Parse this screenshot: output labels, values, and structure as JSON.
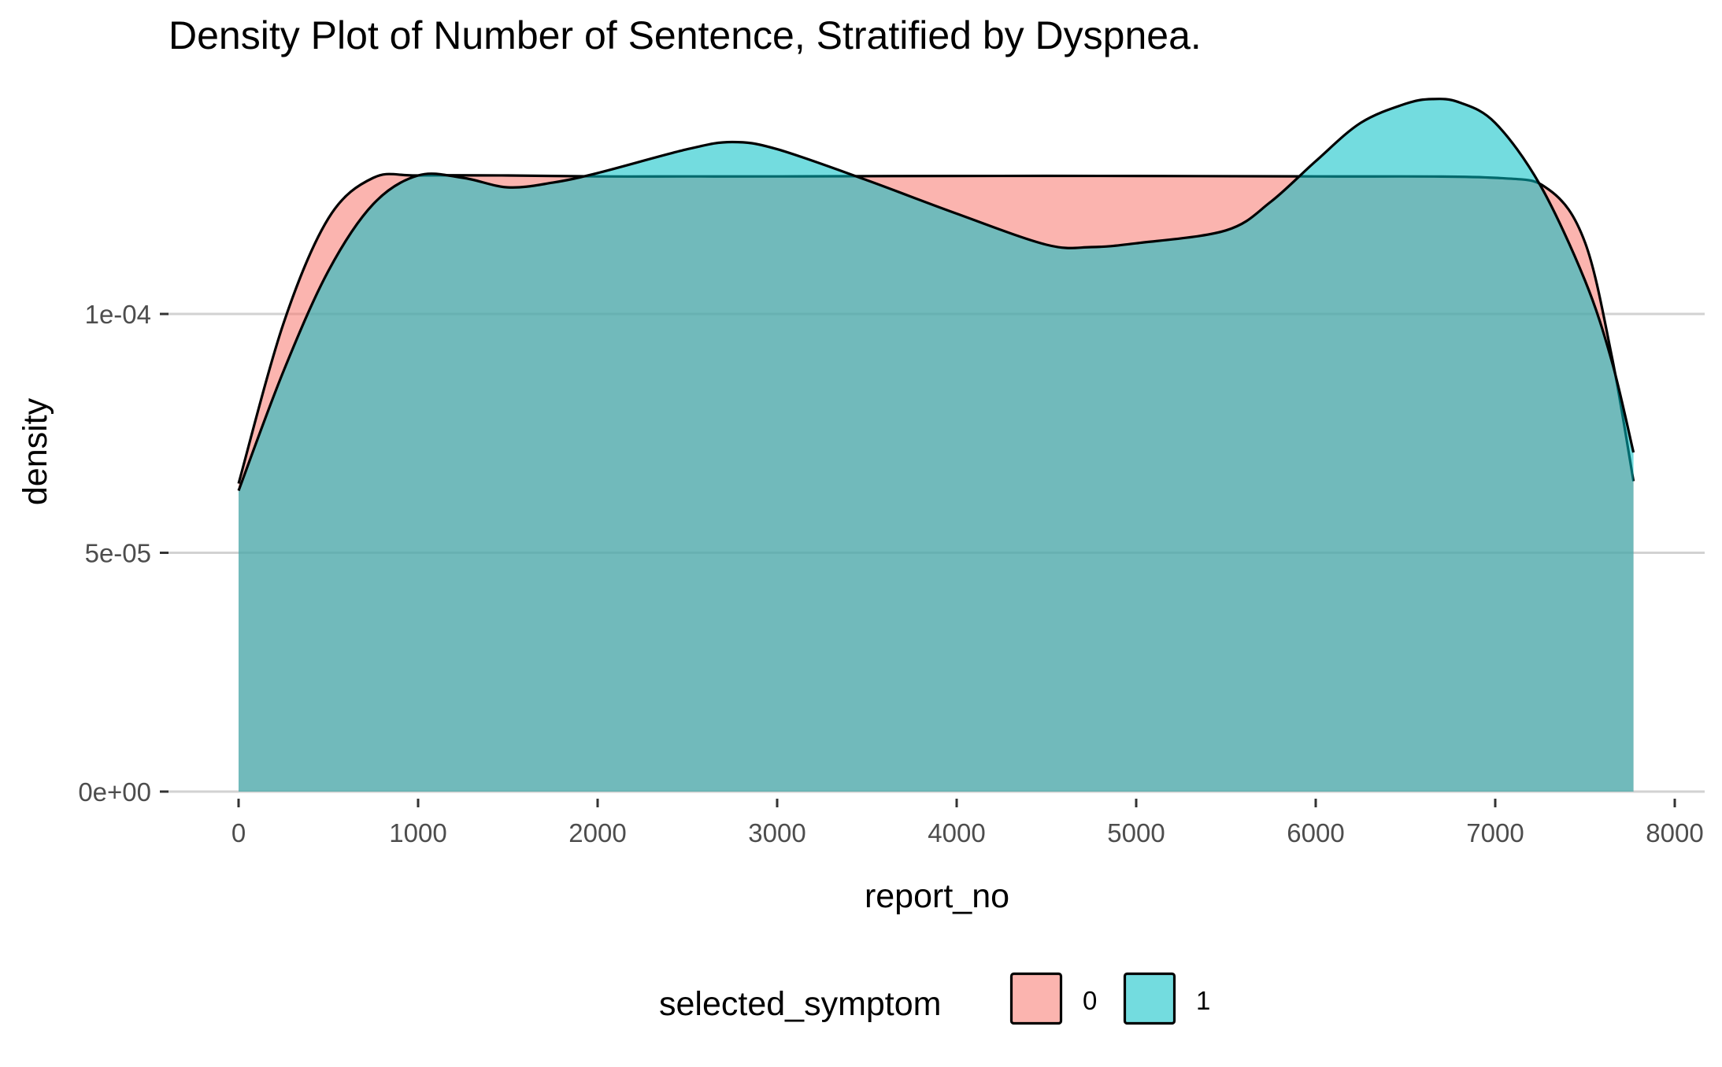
{
  "chart_data": {
    "type": "area",
    "title": "Density Plot of Number of Sentence, Stratified by Dyspnea.",
    "xlabel": "report_no",
    "ylabel": "density",
    "xlim": [
      -400,
      8050
    ],
    "ylim": [
      0,
      0.000155
    ],
    "x_ticks": [
      0,
      1000,
      2000,
      3000,
      4000,
      5000,
      6000,
      7000,
      8000
    ],
    "x_tick_labels": [
      "0",
      "1000",
      "2000",
      "3000",
      "4000",
      "5000",
      "6000",
      "7000",
      "8000"
    ],
    "y_ticks": [
      0,
      5e-05,
      0.0001
    ],
    "y_tick_labels": [
      "0e+00",
      "5e-05",
      "1e-04"
    ],
    "grid": "horizontal",
    "legend": {
      "title": "selected_symptom",
      "position": "bottom",
      "entries": [
        {
          "label": "0",
          "color": "#F8766D"
        },
        {
          "label": "1",
          "color": "#00BFC4"
        }
      ]
    },
    "fill_opacity": 0.55,
    "series": [
      {
        "name": "0",
        "color": "#F8766D",
        "x": [
          0,
          250,
          500,
          750,
          1000,
          1500,
          2000,
          2500,
          3000,
          4000,
          5000,
          6000,
          7000,
          7300,
          7500,
          7650,
          7770
        ],
        "y": [
          6.45e-05,
          9.8e-05,
          0.00012,
          0.0001285,
          0.000129,
          0.000129,
          0.0001288,
          0.0001288,
          0.0001288,
          0.0001289,
          0.0001289,
          0.0001288,
          0.0001285,
          0.000126,
          0.000115,
          9.1e-05,
          6.5e-05
        ]
      },
      {
        "name": "1",
        "color": "#00BFC4",
        "x": [
          0,
          250,
          500,
          750,
          1000,
          1250,
          1500,
          1750,
          2000,
          2500,
          2750,
          3000,
          3500,
          4000,
          4500,
          4750,
          5000,
          5500,
          5750,
          6000,
          6250,
          6500,
          6650,
          6800,
          7000,
          7250,
          7500,
          7650,
          7770
        ],
        "y": [
          6.3e-05,
          8.8e-05,
          0.000109,
          0.000123,
          0.000129,
          0.0001285,
          0.0001265,
          0.0001275,
          0.0001295,
          0.0001345,
          0.000136,
          0.0001345,
          0.000128,
          0.000121,
          0.0001145,
          0.000114,
          0.0001148,
          0.0001175,
          0.0001235,
          0.000132,
          0.00014,
          0.000144,
          0.000145,
          0.0001443,
          0.00014,
          0.000127,
          0.000107,
          9e-05,
          7.1e-05
        ]
      }
    ]
  }
}
